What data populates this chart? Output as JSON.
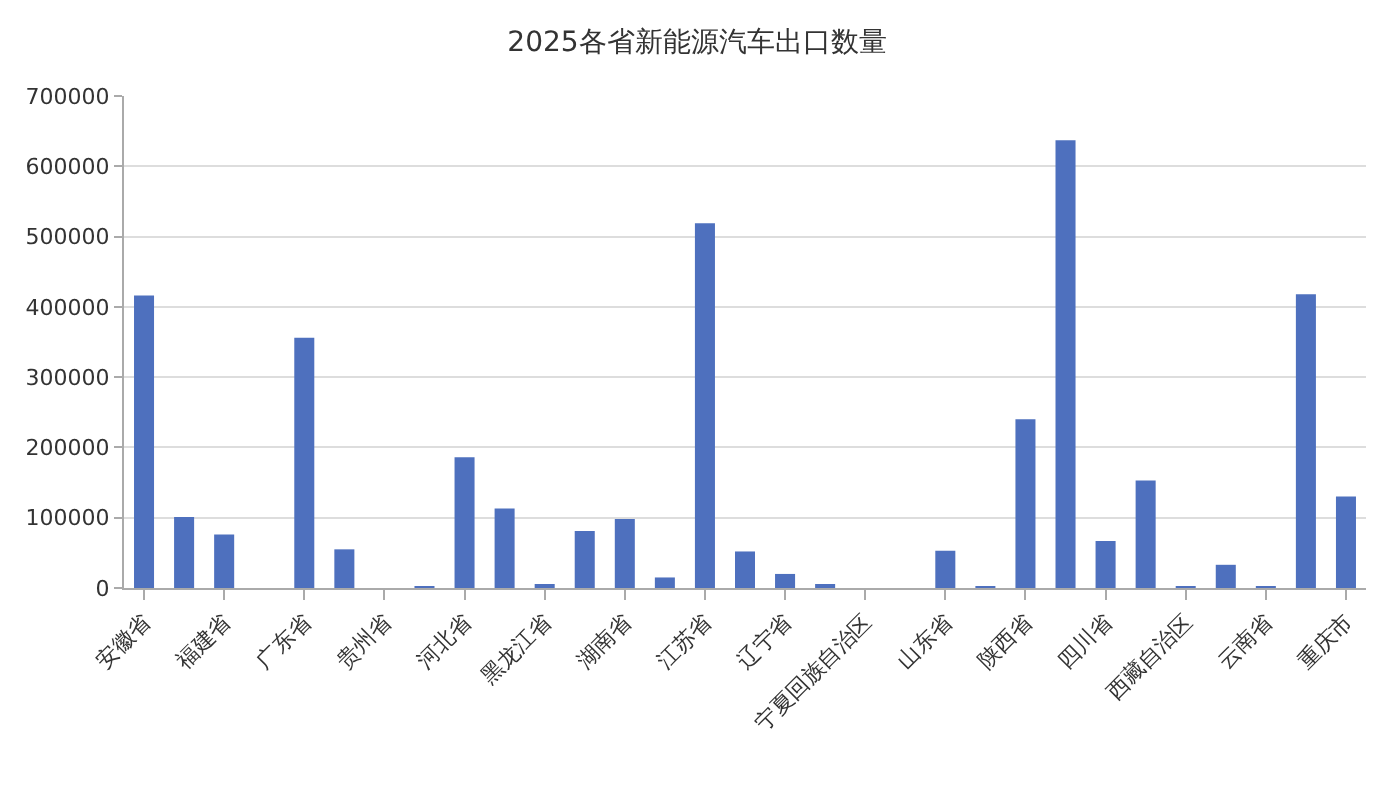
{
  "chart_data": {
    "type": "bar",
    "title": "2025各省新能源汽车出口数量",
    "categories": [
      "安徽省",
      null,
      "福建省",
      null,
      "广东省",
      null,
      "贵州省",
      null,
      "河北省",
      null,
      "黑龙江省",
      null,
      "湖南省",
      null,
      "江苏省",
      null,
      "辽宁省",
      null,
      "宁夏回族自治区",
      null,
      "山东省",
      null,
      "陕西省",
      null,
      "四川省",
      null,
      "西藏自治区",
      null,
      "云南省",
      null,
      "重庆市"
    ],
    "values": [
      416000,
      101000,
      76000,
      0,
      356000,
      55000,
      0,
      1000,
      186000,
      113000,
      4000,
      81000,
      98000,
      15000,
      519000,
      52000,
      20000,
      4000,
      0,
      0,
      53000,
      1000,
      240000,
      637000,
      67000,
      153000,
      2000,
      33000,
      1000,
      418000,
      130000
    ],
    "color": "#4e70be",
    "ylim": [
      0,
      700000
    ],
    "yticks": [
      0,
      100000,
      200000,
      300000,
      400000,
      500000,
      600000,
      700000
    ],
    "grid": "y"
  }
}
